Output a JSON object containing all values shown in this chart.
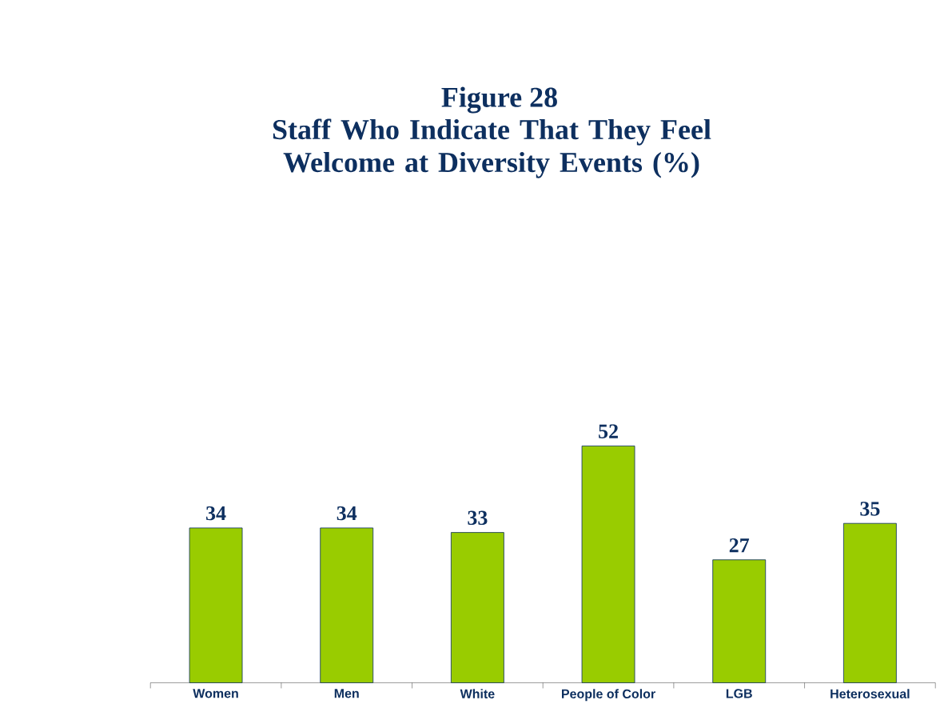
{
  "chart_data": {
    "type": "bar",
    "title": "Figure 28",
    "subtitle": "Staff Who Indicate That They Feel Welcome at Diversity Events (%)",
    "categories": [
      "Women",
      "Men",
      "White",
      "People of Color",
      "LGB",
      "Heterosexual"
    ],
    "values": [
      34,
      34,
      33,
      52,
      27,
      35
    ],
    "color": "#99cc00",
    "data_labels": true
  }
}
